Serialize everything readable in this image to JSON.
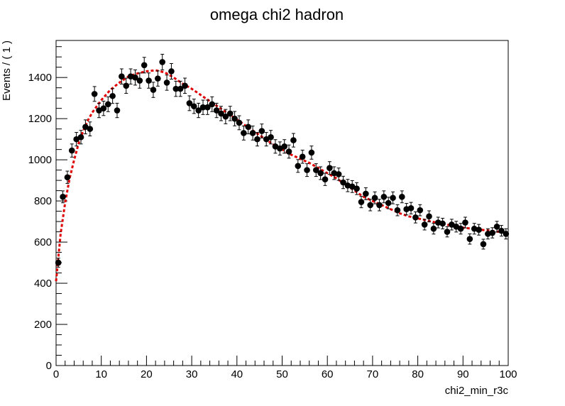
{
  "chart_data": {
    "type": "scatter",
    "title": "omega chi2 hadron",
    "xlabel": "chi2_min_r3c",
    "ylabel": "Events / ( 1 )",
    "xlim": [
      0,
      100
    ],
    "ylim": [
      0,
      1580
    ],
    "x_ticks": [
      "0",
      "10",
      "20",
      "30",
      "40",
      "50",
      "60",
      "70",
      "80",
      "90",
      "100"
    ],
    "y_ticks": [
      "0",
      "200",
      "400",
      "600",
      "800",
      "1000",
      "1200",
      "1400"
    ],
    "grid": false,
    "series": [
      {
        "kind": "points-with-error-bars",
        "color": "#000000",
        "x": [
          0.5,
          1.5,
          2.5,
          3.5,
          4.5,
          5.5,
          6.5,
          7.5,
          8.5,
          9.5,
          10.5,
          11.5,
          12.5,
          13.5,
          14.5,
          15.5,
          16.5,
          17.5,
          18.5,
          19.5,
          20.5,
          21.5,
          22.5,
          23.5,
          24.5,
          25.5,
          26.5,
          27.5,
          28.5,
          29.5,
          30.5,
          31.5,
          32.5,
          33.5,
          34.5,
          35.5,
          36.5,
          37.5,
          38.5,
          39.5,
          40.5,
          41.5,
          42.5,
          43.5,
          44.5,
          45.5,
          46.5,
          47.5,
          48.5,
          49.5,
          50.5,
          51.5,
          52.5,
          53.5,
          54.5,
          55.5,
          56.5,
          57.5,
          58.5,
          59.5,
          60.5,
          61.5,
          62.5,
          63.5,
          64.5,
          65.5,
          66.5,
          67.5,
          68.5,
          69.5,
          70.5,
          71.5,
          72.5,
          73.5,
          74.5,
          75.5,
          76.5,
          77.5,
          78.5,
          79.5,
          80.5,
          81.5,
          82.5,
          83.5,
          84.5,
          85.5,
          86.5,
          87.5,
          88.5,
          89.5,
          90.5,
          91.5,
          92.5,
          93.5,
          94.5,
          95.5,
          96.5,
          97.5,
          98.5,
          99.5
        ],
        "y": [
          500,
          820,
          915,
          1045,
          1100,
          1110,
          1160,
          1150,
          1320,
          1240,
          1250,
          1270,
          1310,
          1240,
          1405,
          1360,
          1405,
          1400,
          1385,
          1460,
          1385,
          1340,
          1395,
          1475,
          1375,
          1430,
          1345,
          1345,
          1360,
          1275,
          1260,
          1240,
          1255,
          1255,
          1270,
          1240,
          1225,
          1210,
          1225,
          1200,
          1180,
          1130,
          1160,
          1130,
          1100,
          1140,
          1100,
          1110,
          1065,
          1055,
          1065,
          1040,
          1095,
          970,
          1015,
          950,
          1035,
          950,
          935,
          905,
          960,
          935,
          930,
          890,
          875,
          870,
          860,
          795,
          835,
          780,
          815,
          780,
          820,
          790,
          815,
          755,
          820,
          760,
          765,
          720,
          755,
          685,
          725,
          665,
          695,
          690,
          650,
          685,
          675,
          665,
          695,
          615,
          665,
          660,
          590,
          640,
          645,
          675,
          655,
          640
        ],
        "err": [
          22,
          29,
          30,
          32,
          33,
          33,
          34,
          34,
          36,
          35,
          35,
          36,
          36,
          35,
          37,
          37,
          37,
          37,
          37,
          38,
          37,
          37,
          37,
          38,
          37,
          38,
          37,
          37,
          37,
          36,
          35,
          35,
          35,
          35,
          36,
          35,
          35,
          35,
          35,
          35,
          34,
          34,
          34,
          34,
          33,
          34,
          33,
          33,
          33,
          32,
          33,
          32,
          33,
          31,
          32,
          31,
          32,
          31,
          31,
          30,
          31,
          31,
          30,
          30,
          30,
          29,
          29,
          28,
          29,
          28,
          29,
          28,
          29,
          28,
          29,
          27,
          29,
          28,
          28,
          27,
          27,
          26,
          27,
          26,
          26,
          26,
          25,
          26,
          26,
          26,
          26,
          25,
          26,
          26,
          24,
          25,
          25,
          26,
          26,
          25
        ]
      },
      {
        "kind": "fit-curve",
        "color": "#e00000",
        "style": "dashed",
        "x": [
          0,
          1,
          2,
          3,
          4,
          5,
          6,
          7,
          8,
          9,
          10,
          12,
          14,
          16,
          18,
          20,
          22,
          24,
          26,
          28,
          30,
          32,
          34,
          36,
          38,
          40,
          42,
          44,
          46,
          48,
          50,
          52,
          54,
          56,
          58,
          60,
          62,
          64,
          66,
          68,
          70,
          72,
          74,
          76,
          78,
          80,
          82,
          84,
          86,
          88,
          90,
          92,
          94,
          96,
          98,
          100
        ],
        "y": [
          410,
          640,
          790,
          910,
          1000,
          1080,
          1140,
          1190,
          1230,
          1260,
          1290,
          1340,
          1375,
          1405,
          1420,
          1430,
          1435,
          1425,
          1400,
          1370,
          1345,
          1315,
          1285,
          1255,
          1225,
          1195,
          1165,
          1135,
          1105,
          1075,
          1050,
          1025,
          1005,
          985,
          960,
          935,
          910,
          880,
          850,
          820,
          800,
          780,
          760,
          740,
          725,
          715,
          705,
          695,
          685,
          680,
          670,
          665,
          660,
          655,
          650,
          645
        ]
      }
    ]
  }
}
